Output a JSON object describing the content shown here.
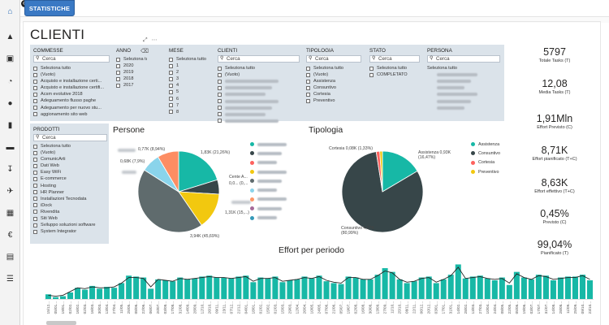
{
  "app": {
    "tab_label": "STATISTICHE",
    "page_title": "CLIENTI"
  },
  "nav": {
    "icons": [
      "home-icon",
      "graduation-cap-icon",
      "bank-icon",
      "pie-chart-icon",
      "users-icon",
      "id-card-icon",
      "credit-card-icon",
      "download-icon",
      "plane-icon",
      "calendar-icon",
      "euro-icon",
      "document-icon",
      "list-icon"
    ]
  },
  "search_placeholder": "Cerca",
  "slicers": {
    "commesse": {
      "header": "COMMESSE",
      "items": [
        "Seleziona tutto",
        "(Vuoto)",
        "Acquisto e installazione certi...",
        "Acquisto e installazione certifi...",
        "Acsm evolutive 2018",
        "Adeguamento flusso paghe",
        "Adeguamento per nuovo stu...",
        "aggionamento sito web"
      ]
    },
    "anno": {
      "header": "ANNO",
      "items": [
        "Seleziona tutto",
        "2020",
        "2019",
        "2018",
        "2017"
      ]
    },
    "mese": {
      "header": "MESE",
      "items": [
        "Seleziona tutto",
        "1",
        "2",
        "3",
        "4",
        "5",
        "6",
        "7",
        "8"
      ]
    },
    "clienti": {
      "header": "CLIENTI",
      "items": [
        "Seleziona tutto",
        "(Vuoto)"
      ]
    },
    "tipologia": {
      "header": "TIPOLOGIA",
      "items": [
        "Seleziona tutto",
        "(Vuoto)",
        "Assistenza",
        "Consuntivo",
        "Cortesia",
        "Preventivo"
      ]
    },
    "stato": {
      "header": "STATO",
      "items": [
        "Seleziona tutto",
        "COMPLETATO"
      ]
    },
    "persona": {
      "header": "PERSONA",
      "items": [
        "Seleziona tutto"
      ]
    },
    "prodotti": {
      "header": "PRODOTTI",
      "items": [
        "Seleziona tutto",
        "(Vuoto)",
        "ComunicArti",
        "Dati Web",
        "Easy WiFi",
        "E-commerce",
        "Hosting",
        "HR Planner",
        "Installazioni Tecnodata",
        "iDock",
        "Rivendita",
        "Siti Web",
        "Sviluppo soluzioni software",
        "System Integrator"
      ]
    }
  },
  "kpis": [
    {
      "value": "5797",
      "label": "Totale Tasks (T)"
    },
    {
      "value": "12,08",
      "label": "Media Tasks (T)"
    },
    {
      "value": "1,91Mln",
      "label": "Effort Previsto (C)"
    },
    {
      "value": "8,71K",
      "label": "Effort pianificato (T+C)"
    },
    {
      "value": "8,63K",
      "label": "Effort effettivo (T+C)"
    },
    {
      "value": "0,45%",
      "label": "Previsto (C)"
    },
    {
      "value": "99,04%",
      "label": "Pianificato (T)"
    }
  ],
  "chart_data": [
    {
      "type": "pie",
      "title": "Persone",
      "slices": [
        {
          "name": "",
          "value": 1.83,
          "color": "#17b8a6",
          "label": "1,83K (21,26%)"
        },
        {
          "name": "",
          "value": 0.52,
          "color": "#374649",
          "label": ""
        },
        {
          "name": "",
          "value": 1.31,
          "color": "#f2c80f",
          "label": "1,31K (15,...)"
        },
        {
          "name": "",
          "value": 3.94,
          "color": "#5f6b6d",
          "label": "3,94K (45,69%)"
        },
        {
          "name": "",
          "value": 0.68,
          "color": "#8ad4eb",
          "label": "0,68K (7,9%)"
        },
        {
          "name": "",
          "value": 0.77,
          "color": "#fd8d63",
          "label": "0,77K (8,94%)"
        }
      ],
      "partial_label": "Cente A...",
      "partial_value": "0,0... (0,...",
      "legend_colors": [
        "#17b8a6",
        "#374649",
        "#fd625e",
        "#f2c80f",
        "#5f6b6d",
        "#8ad4eb",
        "#fe9666",
        "#a66999",
        "#3599b8"
      ]
    },
    {
      "type": "pie",
      "title": "Tipologia",
      "slices": [
        {
          "name": "Assistenza",
          "value": 0.93,
          "color": "#17b8a6",
          "label": "Assistenza 0,93K (16,47%)"
        },
        {
          "name": "Consuntivo",
          "value": 4.57,
          "color": "#374649",
          "label": "Consuntivo 4,57K (80,99%)"
        },
        {
          "name": "Cortesia",
          "value": 0.08,
          "color": "#fd625e",
          "label": "Cortesia 0,08K (1,33%)"
        },
        {
          "name": "Preventivo",
          "value": 0.06,
          "color": "#f2c80f",
          "label": ""
        }
      ]
    },
    {
      "type": "bar",
      "title": "Effort per periodo",
      "values": [
        5,
        2,
        3,
        7,
        12,
        10,
        14,
        11,
        13,
        12,
        17,
        25,
        24,
        23,
        11,
        21,
        20,
        19,
        23,
        21,
        22,
        24,
        25,
        23,
        23,
        22,
        24,
        25,
        18,
        23,
        22,
        24,
        18,
        20,
        21,
        24,
        22,
        25,
        19,
        17,
        16,
        24,
        23,
        21,
        21,
        26,
        33,
        29,
        21,
        17,
        19,
        23,
        24,
        17,
        21,
        26,
        37,
        22,
        24,
        25,
        22,
        20,
        23,
        15,
        29,
        23,
        21,
        26,
        25,
        20,
        23,
        24,
        24,
        26,
        20
      ],
      "line": [
        4,
        3,
        4,
        8,
        12,
        11,
        13,
        12,
        12,
        13,
        17,
        23,
        23,
        22,
        13,
        21,
        20,
        19,
        22,
        21,
        22,
        23,
        24,
        23,
        23,
        22,
        23,
        24,
        19,
        22,
        22,
        23,
        19,
        20,
        21,
        23,
        22,
        24,
        20,
        18,
        17,
        23,
        23,
        21,
        21,
        25,
        30,
        28,
        21,
        18,
        19,
        22,
        23,
        18,
        21,
        25,
        34,
        22,
        23,
        24,
        22,
        21,
        22,
        17,
        27,
        23,
        21,
        25,
        24,
        21,
        22,
        23,
        23,
        25,
        21
      ],
      "categories": [
        "15/12...",
        "05/01...",
        "19/01...",
        "02/02...",
        "16/02...",
        "02/03...",
        "16/03...",
        "30/03...",
        "13/04...",
        "27/04...",
        "11/05...",
        "25/05...",
        "08/06...",
        "22/06...",
        "06/07...",
        "20/07...",
        "03/08...",
        "17/08...",
        "31/08...",
        "14/09...",
        "28/09...",
        "12/10...",
        "26/10...",
        "09/11...",
        "23/11...",
        "07/12...",
        "21/12...",
        "04/01...",
        "18/01...",
        "01/02...",
        "15/02...",
        "01/03...",
        "15/03...",
        "29/03...",
        "12/04...",
        "26/04...",
        "10/05...",
        "24/05...",
        "07/06...",
        "21/06...",
        "05/07...",
        "19/07...",
        "02/08...",
        "16/08...",
        "30/08...",
        "13/09...",
        "27/09...",
        "11/10...",
        "25/10...",
        "08/11...",
        "22/11...",
        "06/12...",
        "20/12...",
        "03/01...",
        "17/01...",
        "31/01...",
        "14/02...",
        "28/02...",
        "13/03...",
        "27/03...",
        "10/04...",
        "24/04...",
        "08/05...",
        "22/05...",
        "05/06...",
        "19/06...",
        "03/07...",
        "17/07...",
        "31/07...",
        "14/08...",
        "28/08...",
        "11/09...",
        "25/09...",
        "09/10...",
        "23/10..."
      ],
      "ylim": [
        0,
        40
      ],
      "bar_color": "#17b8a6",
      "line_color": "#252423"
    }
  ]
}
